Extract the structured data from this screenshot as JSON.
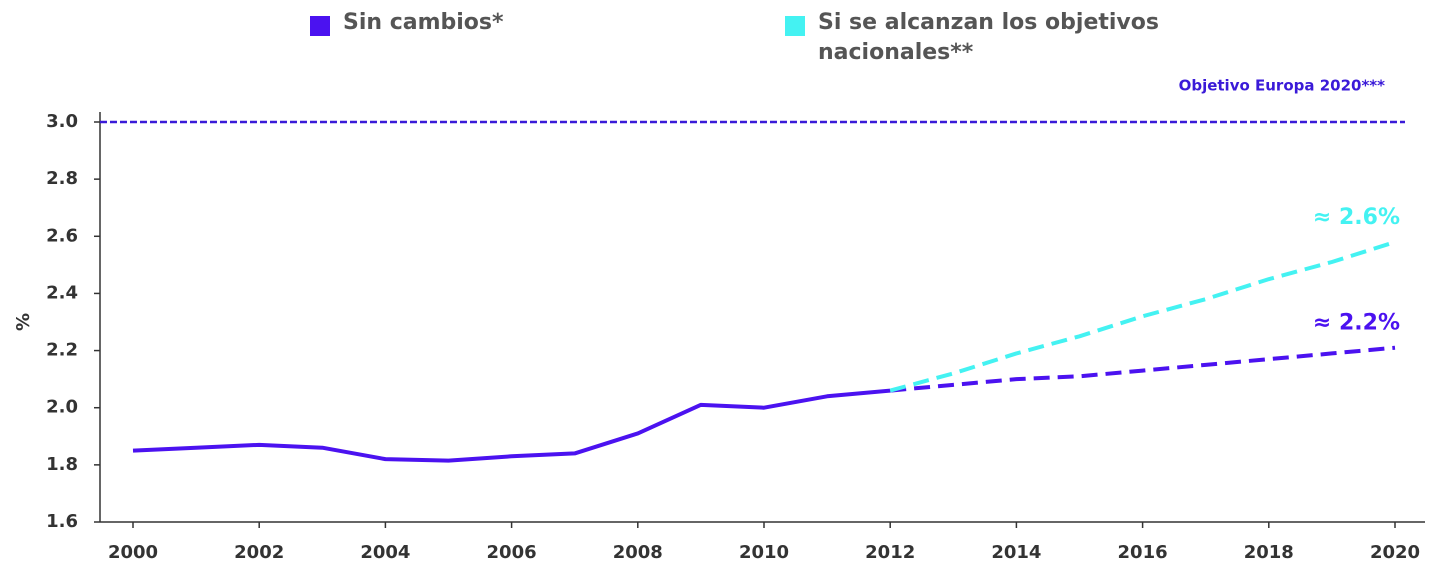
{
  "chart_data": {
    "type": "line",
    "ylabel": "%",
    "x": [
      2000,
      2001,
      2002,
      2003,
      2004,
      2005,
      2006,
      2007,
      2008,
      2009,
      2010,
      2011,
      2012,
      2013,
      2014,
      2015,
      2016,
      2017,
      2018,
      2019,
      2020
    ],
    "xlim": [
      2000,
      2020
    ],
    "xticks": [
      2000,
      2002,
      2004,
      2006,
      2008,
      2010,
      2012,
      2014,
      2016,
      2018,
      2020
    ],
    "ylim": [
      1.6,
      3.0
    ],
    "yticks": [
      1.6,
      1.8,
      {
        "value": 2,
        "label": "2.0"
      },
      2.2,
      2.4,
      2.6,
      2.8,
      {
        "value": 3,
        "label": "3.0"
      }
    ],
    "dashed_from": 2012,
    "series": [
      {
        "name": "Sin cambios*",
        "color": "#4b12f0",
        "end_label": "≈ 2.2%",
        "values": [
          1.85,
          1.86,
          1.87,
          1.86,
          1.82,
          1.815,
          1.83,
          1.84,
          1.91,
          2.01,
          2.0,
          2.04,
          2.06,
          2.08,
          2.1,
          2.11,
          2.13,
          2.15,
          2.17,
          2.19,
          2.21
        ]
      },
      {
        "name": "Si se alcanzan los objetivos nacionales**",
        "color": "#44f2f2",
        "end_label": "≈ 2.6%",
        "values": [
          null,
          null,
          null,
          null,
          null,
          null,
          null,
          null,
          null,
          null,
          null,
          null,
          2.06,
          2.12,
          2.19,
          2.25,
          2.32,
          2.38,
          2.45,
          2.51,
          2.58
        ]
      }
    ],
    "reference_line": {
      "value": 3,
      "label": "Objetivo Europa 2020***",
      "color": "#3a1ad8"
    }
  }
}
